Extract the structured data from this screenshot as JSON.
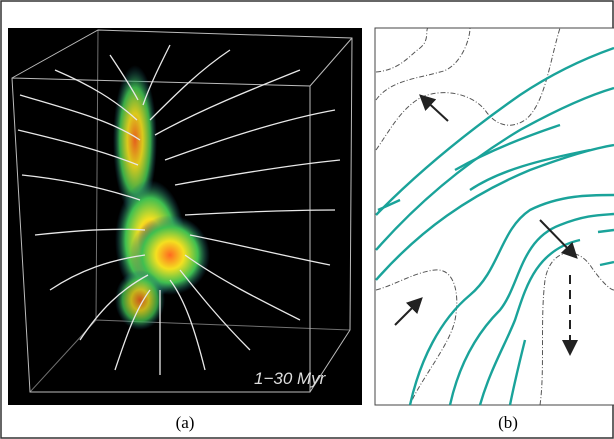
{
  "panels": [
    {
      "label": "(a)",
      "annotation": "1−30 Myr"
    },
    {
      "label": "(b)"
    }
  ]
}
